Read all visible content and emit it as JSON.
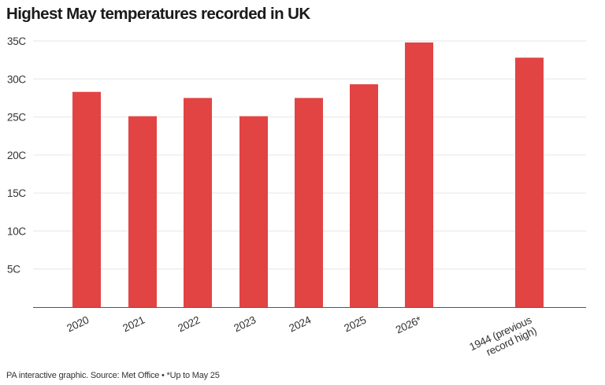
{
  "chart_data": {
    "type": "bar",
    "title": "Highest May temperatures recorded in UK",
    "categories": [
      [
        "2020"
      ],
      [
        "2021"
      ],
      [
        "2022"
      ],
      [
        "2023"
      ],
      [
        "2024"
      ],
      [
        "2025"
      ],
      [
        "2026*"
      ],
      [
        "1944 (previous",
        "record high)"
      ]
    ],
    "values": [
      28.3,
      25.1,
      27.5,
      25.1,
      27.5,
      29.3,
      34.8,
      32.8
    ],
    "unit": "C",
    "y_ticks": [
      "5C",
      "10C",
      "15C",
      "20C",
      "25C",
      "30C",
      "35C"
    ],
    "ylim": [
      0,
      35
    ],
    "grid": true,
    "bar_color": "#e24444",
    "gridline_color": "#e6e6e6",
    "axis_color": "#555555"
  },
  "footer": {
    "source": "PA interactive graphic. Source: Met Office • *Up to May 25"
  }
}
